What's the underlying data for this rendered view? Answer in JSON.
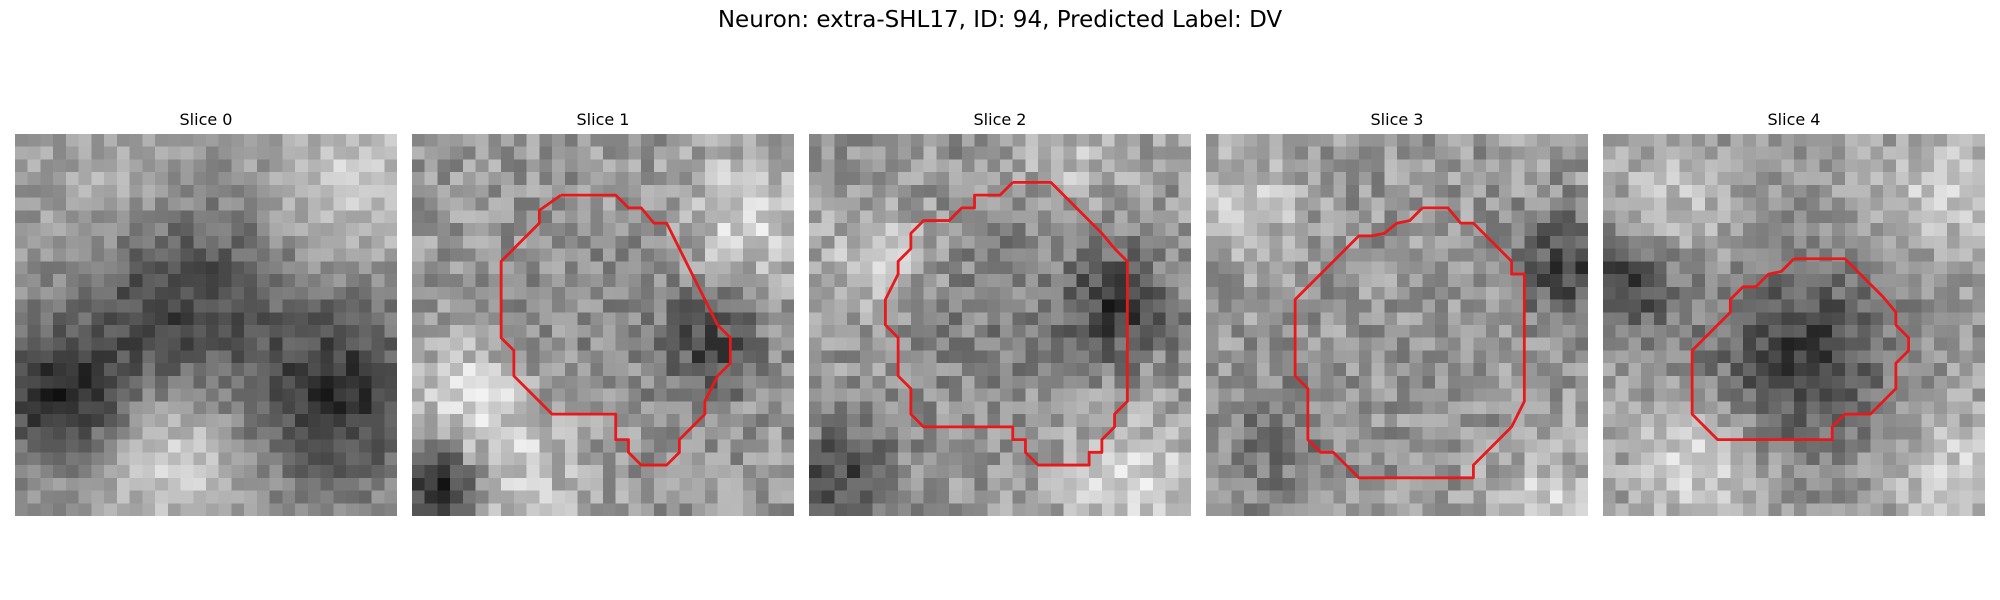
{
  "figure": {
    "title": "Neuron: extra-SHL17, ID: 94, Predicted Label: DV"
  },
  "slices": [
    {
      "title": "Slice 0",
      "has_contour": false
    },
    {
      "title": "Slice 1",
      "has_contour": true
    },
    {
      "title": "Slice 2",
      "has_contour": true
    },
    {
      "title": "Slice 3",
      "has_contour": true
    },
    {
      "title": "Slice 4",
      "has_contour": true
    }
  ],
  "colors": {
    "contour": "#e8191b",
    "background": "#ffffff"
  }
}
